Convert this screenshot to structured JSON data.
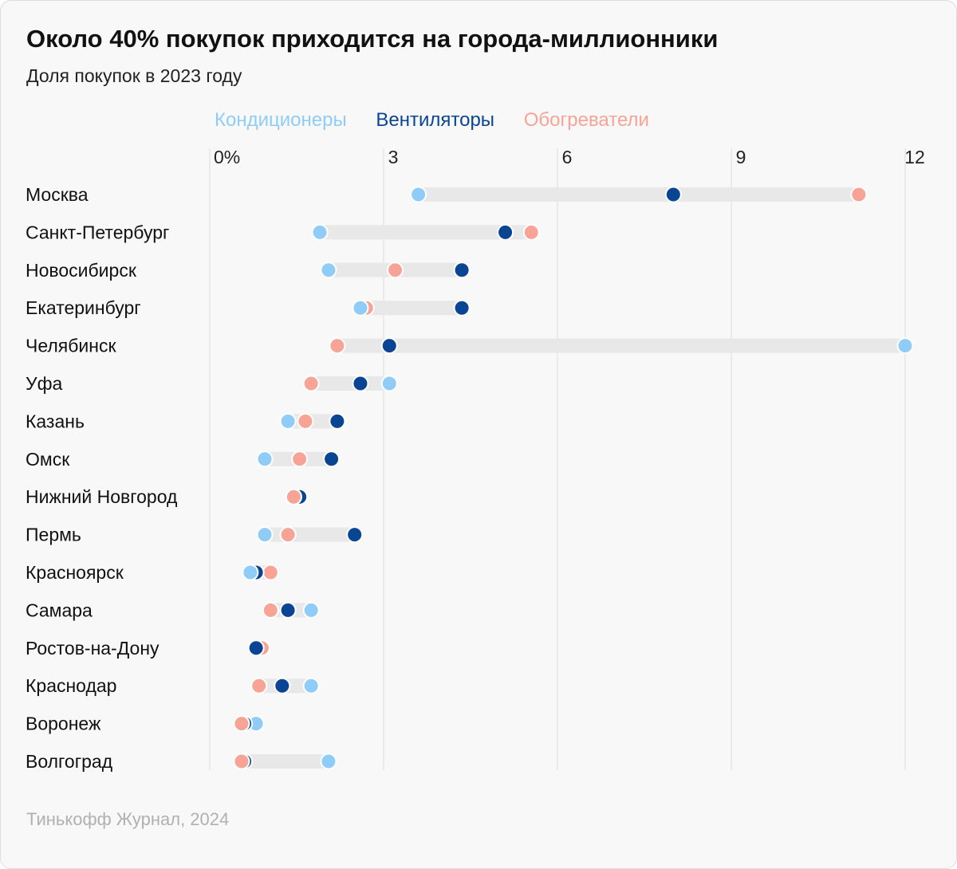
{
  "chart_data": {
    "type": "dot",
    "title": "Около 40% покупок приходится на города-миллионники",
    "subtitle": "Доля покупок в 2023 году",
    "x_ticks": [
      "0%",
      "3",
      "6",
      "9",
      "12"
    ],
    "x_tick_values": [
      0,
      3,
      6,
      9,
      12
    ],
    "xlim": [
      0,
      12
    ],
    "legend_position": "top",
    "categories": [
      "Москва",
      "Санкт-Петербург",
      "Новосибирск",
      "Екатеринбург",
      "Челябинск",
      "Уфа",
      "Казань",
      "Омск",
      "Нижний Новгород",
      "Пермь",
      "Красноярск",
      "Самара",
      "Ростов-на-Дону",
      "Краснодар",
      "Воронеж",
      "Волгоград"
    ],
    "series": [
      {
        "name": "Кондиционеры",
        "color": "#8fcdf8",
        "values": [
          3.6,
          1.9,
          2.05,
          2.6,
          12.0,
          3.1,
          1.35,
          0.95,
          1.45,
          0.95,
          0.7,
          1.75,
          0.8,
          1.75,
          0.8,
          2.05
        ]
      },
      {
        "name": "Вентиляторы",
        "color": "#0a4593",
        "values": [
          8.0,
          5.1,
          4.35,
          4.35,
          3.1,
          2.6,
          2.2,
          2.1,
          1.55,
          2.5,
          0.8,
          1.35,
          0.8,
          1.25,
          0.6,
          0.6
        ]
      },
      {
        "name": "Обогреватели",
        "color": "#f7a497",
        "values": [
          11.2,
          5.55,
          3.2,
          2.7,
          2.2,
          1.75,
          1.65,
          1.55,
          1.45,
          1.35,
          1.05,
          1.05,
          0.9,
          0.85,
          0.55,
          0.55
        ]
      }
    ],
    "source": "Тинькофф Журнал, 2024"
  }
}
